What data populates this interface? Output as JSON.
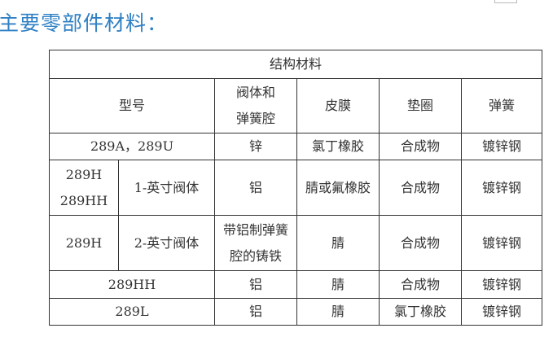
{
  "heading": "主要零部件材料：",
  "table": {
    "caption": "结构材料",
    "headers": [
      "型号",
      "阀体和\n弹簧腔",
      "皮膜",
      "垫圈",
      "弹簧"
    ],
    "header_lines": {
      "body_1": "阀体和",
      "body_2": "弹簧腔"
    },
    "rows": [
      {
        "model": "289A，289U",
        "body": "锌",
        "diaphragm": "氯丁橡胶",
        "gasket": "合成物",
        "spring": "镀锌钢"
      },
      {
        "model_1": "289H",
        "model_2": "289HH",
        "size": "1-英寸阀体",
        "body": "铝",
        "diaphragm": "腈或氟橡胶",
        "gasket": "合成物",
        "spring": "镀锌钢"
      },
      {
        "model": "289H",
        "size": "2-英寸阀体",
        "body_1": "带铝制弹簧",
        "body_2": "腔的铸铁",
        "diaphragm": "腈",
        "gasket": "合成物",
        "spring": "镀锌钢"
      },
      {
        "model": "289HH",
        "body": "铝",
        "diaphragm": "腈",
        "gasket": "合成物",
        "spring": "镀锌钢"
      },
      {
        "model": "289L",
        "body": "铝",
        "diaphragm": "腈",
        "gasket": "氯丁橡胶",
        "spring": "镀锌钢"
      }
    ]
  }
}
